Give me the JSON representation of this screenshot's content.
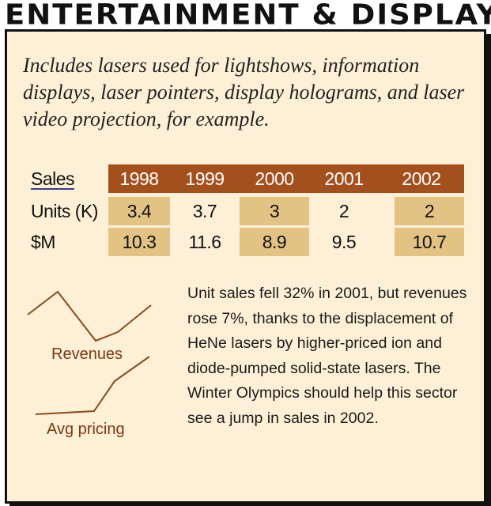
{
  "title": "ENTERTAINMENT & DISPLAY",
  "intro": "Includes lasers used for lightshows, information displays, laser pointers, display holograms, and laser video projection, for example.",
  "table": {
    "header_label": "Sales",
    "years": [
      "1998",
      "1999",
      "2000",
      "2001",
      "2002"
    ],
    "rows": [
      {
        "label": "Units (K)",
        "values": [
          "3.4",
          "3.7",
          "3",
          "2",
          "2"
        ]
      },
      {
        "label": "$M",
        "values": [
          "10.3",
          "11.6",
          "8.9",
          "9.5",
          "10.7"
        ]
      }
    ]
  },
  "trends": {
    "revenues_label": "Revenues",
    "pricing_label": "Avg pricing",
    "line_color": "#8a4a1c"
  },
  "notes": "Unit sales fell 32% in 2001, but revenues rose 7%, thanks to the displacement of HeNe lasers by higher-priced ion and diode-pumped solid-state lasers. The Winter Olympics should help this sector see a jump in sales in 2002.",
  "colors": {
    "panel_bg": "#fdf0d6",
    "header_bg": "#a4501d",
    "shade_bg": "#e2c384"
  }
}
